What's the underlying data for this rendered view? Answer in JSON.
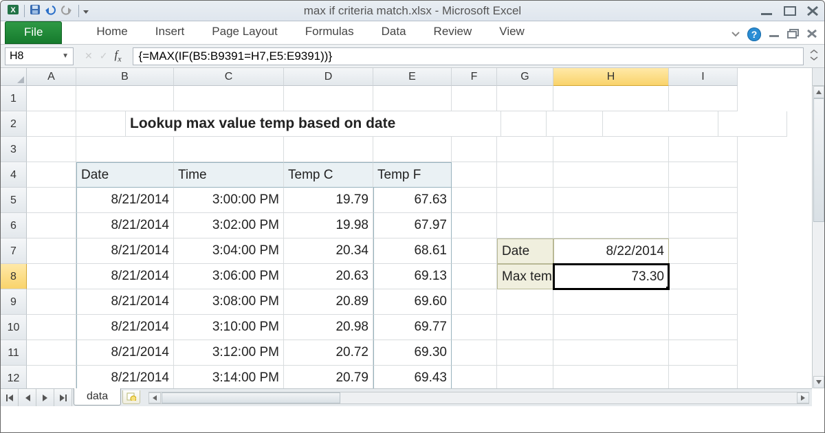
{
  "window": {
    "title": "max if criteria match.xlsx  -  Microsoft Excel"
  },
  "ribbon": {
    "file": "File",
    "tabs": [
      "Home",
      "Insert",
      "Page Layout",
      "Formulas",
      "Data",
      "Review",
      "View"
    ]
  },
  "namebox": "H8",
  "formula": "{=MAX(IF(B5:B9391=H7,E5:E9391))}",
  "columns": {
    "labels": [
      "A",
      "B",
      "C",
      "D",
      "E",
      "F",
      "G",
      "H",
      "I"
    ],
    "widths": [
      72,
      142,
      160,
      130,
      114,
      66,
      82,
      168,
      100
    ],
    "activeIndex": 7
  },
  "rows": {
    "labels": [
      "1",
      "2",
      "3",
      "4",
      "5",
      "6",
      "7",
      "8",
      "9",
      "10",
      "11",
      "12"
    ],
    "height": 37,
    "activeIndex": 7
  },
  "sheet": {
    "title": "Lookup max value temp based on date",
    "headers": {
      "B": "Date",
      "C": "Time",
      "D": "Temp C",
      "E": "Temp F"
    },
    "data": [
      {
        "date": "8/21/2014",
        "time": "3:00:00 PM",
        "tc": "19.79",
        "tf": "67.63"
      },
      {
        "date": "8/21/2014",
        "time": "3:02:00 PM",
        "tc": "19.98",
        "tf": "67.97"
      },
      {
        "date": "8/21/2014",
        "time": "3:04:00 PM",
        "tc": "20.34",
        "tf": "68.61"
      },
      {
        "date": "8/21/2014",
        "time": "3:06:00 PM",
        "tc": "20.63",
        "tf": "69.13"
      },
      {
        "date": "8/21/2014",
        "time": "3:08:00 PM",
        "tc": "20.89",
        "tf": "69.60"
      },
      {
        "date": "8/21/2014",
        "time": "3:10:00 PM",
        "tc": "20.98",
        "tf": "69.77"
      },
      {
        "date": "8/21/2014",
        "time": "3:12:00 PM",
        "tc": "20.72",
        "tf": "69.30"
      },
      {
        "date": "8/21/2014",
        "time": "3:14:00 PM",
        "tc": "20.79",
        "tf": "69.43"
      }
    ],
    "side": {
      "dateLabel": "Date",
      "dateValue": "8/22/2014",
      "maxLabel": "Max temp:",
      "maxValue": "73.30"
    }
  },
  "tabs": {
    "active": "data"
  },
  "colors": {
    "tableHeaderBg": "#eaf1f4",
    "tableBorder": "#97b2bd",
    "sideHeaderBg": "#f0efde",
    "sideBorder": "#b8b894",
    "activeHeader": "#f9d36b",
    "fileTab": "#1e7b33"
  }
}
